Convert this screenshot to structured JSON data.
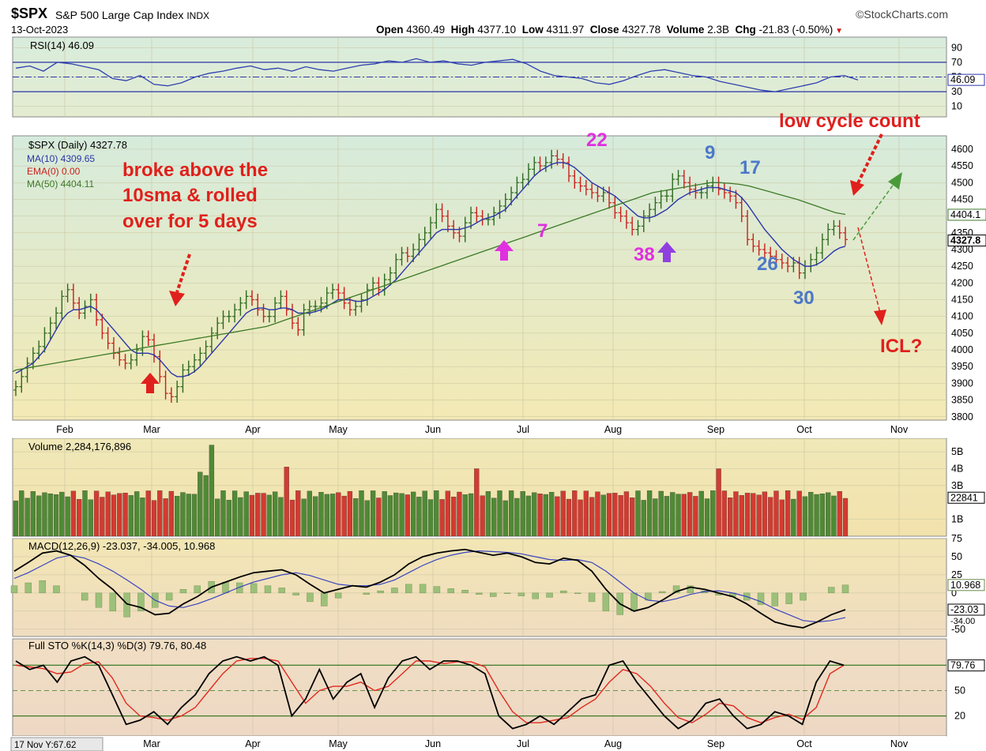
{
  "header": {
    "ticker": "$SPX",
    "name": "S&P 500 Large Cap Index",
    "exchange": "INDX",
    "date": "13-Oct-2023",
    "brand": "©StockCharts.com",
    "open_label": "Open",
    "open": "4360.49",
    "high_label": "High",
    "high": "4377.10",
    "low_label": "Low",
    "low": "4311.97",
    "close_label": "Close",
    "close": "4327.78",
    "volume_label": "Volume",
    "volume": "2.3B",
    "chg_label": "Chg",
    "chg": "-21.83 (-0.50%)"
  },
  "colors": {
    "bg_top": "#dcecd8",
    "bg_bottom": "#f2e6b0",
    "up": "#2d6a1f",
    "down": "#c8201c",
    "ma10": "#2a35a8",
    "ma50": "#3d7a28",
    "annot_red": "#e0201c",
    "annot_magenta": "#e030e0",
    "annot_blue": "#4c78c8"
  },
  "chart_data": [
    {
      "type": "line",
      "panel": "RSI",
      "title": "RSI(14) 46.09",
      "yticks": [
        "90",
        "70",
        "50",
        "30",
        "10"
      ],
      "ylim": [
        0,
        100
      ],
      "last_label": "46.09",
      "series": [
        {
          "name": "RSI(14)",
          "values": [
            62,
            65,
            58,
            70,
            68,
            64,
            60,
            48,
            45,
            52,
            40,
            38,
            42,
            50,
            55,
            58,
            62,
            65,
            60,
            62,
            58,
            64,
            60,
            58,
            62,
            66,
            68,
            72,
            70,
            75,
            70,
            72,
            68,
            66,
            70,
            72,
            74,
            68,
            58,
            52,
            50,
            48,
            42,
            40,
            45,
            52,
            58,
            60,
            56,
            52,
            50,
            44,
            40,
            36,
            32,
            30,
            34,
            38,
            42,
            50,
            52,
            46
          ]
        }
      ]
    },
    {
      "type": "bar",
      "panel": "price",
      "title": "$SPX (Daily) 4327.78",
      "legend": [
        "MA(10) 4309.65",
        "EMA(0) 0.00",
        "MA(50) 4404.11"
      ],
      "yticks": [
        "4600",
        "4550",
        "4500",
        "4450",
        "4400",
        "4350",
        "4300",
        "4250",
        "4200",
        "4150",
        "4100",
        "4050",
        "4000",
        "3950",
        "3900",
        "3850",
        "3800"
      ],
      "ylim": [
        3790,
        4640
      ],
      "last_labels": [
        "4404.1",
        "4327.8"
      ],
      "xticks": [
        "Feb",
        "Mar",
        "Apr",
        "May",
        "Jun",
        "Jul",
        "Aug",
        "Sep",
        "Oct",
        "Nov"
      ],
      "closes": [
        3890,
        3920,
        3960,
        3990,
        4010,
        4050,
        4080,
        4110,
        4160,
        4180,
        4140,
        4110,
        4130,
        4150,
        4090,
        4050,
        4020,
        3990,
        3970,
        3960,
        3970,
        4000,
        4040,
        4030,
        3980,
        3920,
        3870,
        3860,
        3890,
        3940,
        3950,
        3970,
        3990,
        4010,
        4050,
        4080,
        4100,
        4100,
        4120,
        4140,
        4160,
        4150,
        4120,
        4100,
        4100,
        4140,
        4160,
        4120,
        4080,
        4060,
        4120,
        4130,
        4130,
        4140,
        4170,
        4180,
        4170,
        4140,
        4120,
        4130,
        4150,
        4180,
        4200,
        4180,
        4210,
        4230,
        4270,
        4290,
        4280,
        4300,
        4330,
        4350,
        4380,
        4420,
        4400,
        4370,
        4350,
        4340,
        4380,
        4410,
        4400,
        4390,
        4390,
        4410,
        4430,
        4450,
        4470,
        4500,
        4510,
        4540,
        4560,
        4550,
        4560,
        4580,
        4570,
        4560,
        4520,
        4500,
        4490,
        4480,
        4470,
        4460,
        4470,
        4440,
        4410,
        4400,
        4380,
        4360,
        4370,
        4400,
        4420,
        4440,
        4460,
        4460,
        4510,
        4520,
        4500,
        4480,
        4470,
        4470,
        4490,
        4500,
        4480,
        4470,
        4460,
        4440,
        4400,
        4330,
        4310,
        4300,
        4290,
        4280,
        4270,
        4260,
        4250,
        4260,
        4230,
        4250,
        4270,
        4290,
        4330,
        4360,
        4370,
        4350,
        4330
      ],
      "ma10": [
        3930,
        3940,
        3950,
        3960,
        3980,
        4000,
        4030,
        4060,
        4090,
        4110,
        4120,
        4120,
        4125,
        4130,
        4120,
        4100,
        4080,
        4060,
        4040,
        4020,
        4000,
        3990,
        3990,
        3990,
        3985,
        3970,
        3950,
        3930,
        3920,
        3920,
        3925,
        3935,
        3950,
        3970,
        3990,
        4010,
        4030,
        4050,
        4070,
        4090,
        4110,
        4120,
        4125,
        4125,
        4120,
        4120,
        4125,
        4125,
        4120,
        4110,
        4110,
        4110,
        4115,
        4120,
        4130,
        4140,
        4150,
        4150,
        4150,
        4145,
        4145,
        4150,
        4160,
        4170,
        4180,
        4195,
        4210,
        4230,
        4250,
        4270,
        4290,
        4310,
        4330,
        4350,
        4360,
        4360,
        4360,
        4360,
        4365,
        4370,
        4380,
        4390,
        4395,
        4400,
        4410,
        4420,
        4440,
        4460,
        4480,
        4500,
        4520,
        4535,
        4545,
        4555,
        4560,
        4560,
        4555,
        4545,
        4530,
        4515,
        4500,
        4490,
        4480,
        4470,
        4460,
        4445,
        4430,
        4415,
        4400,
        4395,
        4395,
        4400,
        4410,
        4420,
        4435,
        4450,
        4460,
        4470,
        4475,
        4480,
        4485,
        4485,
        4485,
        4480,
        4475,
        4470,
        4455,
        4435,
        4410,
        4385,
        4360,
        4340,
        4320,
        4300,
        4285,
        4270,
        4260,
        4250,
        4250,
        4255,
        4265,
        4280,
        4295,
        4305,
        4310
      ],
      "ma50": [
        3940,
        3945,
        3950,
        3955,
        3960,
        3965,
        3970,
        3975,
        3980,
        3985,
        3990,
        3995,
        4000,
        4005,
        4010,
        4015,
        4020,
        4025,
        4030,
        4035,
        4040,
        4045,
        4050,
        4055,
        4060,
        4065,
        4070,
        4080,
        4090,
        4100,
        4110,
        4120,
        4130,
        4140,
        4150,
        4160,
        4170,
        4180,
        4190,
        4200,
        4210,
        4220,
        4230,
        4240,
        4250,
        4260,
        4270,
        4280,
        4290,
        4300,
        4310,
        4320,
        4330,
        4340,
        4350,
        4360,
        4370,
        4380,
        4390,
        4400,
        4410,
        4420,
        4430,
        4440,
        4450,
        4460,
        4470,
        4475,
        4480,
        4485,
        4490,
        4495,
        4500,
        4500,
        4498,
        4495,
        4490,
        4482,
        4474,
        4466,
        4458,
        4450,
        4440,
        4430,
        4420,
        4410,
        4405
      ]
    },
    {
      "type": "bar",
      "panel": "volume",
      "title": "Volume 2,284,176,896",
      "yticks": [
        "5B",
        "4B",
        "3B",
        "1B"
      ],
      "last_label": "22841"
    },
    {
      "type": "line",
      "panel": "MACD",
      "title": "MACD(12,26,9) -23.037, -34.005, 10.968",
      "yticks": [
        "75",
        "50",
        "25",
        "0",
        "-25",
        "-50"
      ],
      "ylim": [
        -60,
        75
      ],
      "last_labels": [
        "10.968",
        "-23.03",
        "-34.00"
      ],
      "series": [
        {
          "name": "MACD",
          "values": [
            30,
            42,
            55,
            58,
            52,
            38,
            20,
            5,
            -15,
            -20,
            -30,
            -28,
            -15,
            -5,
            8,
            15,
            22,
            28,
            30,
            32,
            25,
            12,
            0,
            5,
            10,
            8,
            15,
            25,
            40,
            50,
            55,
            58,
            60,
            56,
            52,
            55,
            50,
            42,
            40,
            48,
            45,
            30,
            5,
            -15,
            -25,
            -20,
            -10,
            2,
            8,
            5,
            0,
            -5,
            -15,
            -28,
            -40,
            -45,
            -48,
            -40,
            -30,
            -23
          ]
        },
        {
          "name": "Signal",
          "values": [
            20,
            28,
            38,
            48,
            52,
            48,
            40,
            30,
            18,
            5,
            -10,
            -18,
            -20,
            -15,
            -8,
            0,
            8,
            15,
            20,
            25,
            28,
            24,
            18,
            12,
            10,
            10,
            12,
            18,
            28,
            38,
            46,
            52,
            56,
            58,
            57,
            56,
            54,
            50,
            46,
            45,
            46,
            42,
            30,
            15,
            0,
            -10,
            -12,
            -8,
            -2,
            2,
            3,
            0,
            -5,
            -12,
            -22,
            -30,
            -38,
            -40,
            -38,
            -34
          ]
        }
      ]
    },
    {
      "type": "line",
      "panel": "STO",
      "title": "Full STO %K(14,3) %D(3) 79.76, 80.48",
      "yticks": [
        "50",
        "20"
      ],
      "ylim": [
        0,
        100
      ],
      "last_label": "79.76",
      "series": [
        {
          "name": "%K",
          "values": [
            85,
            75,
            80,
            60,
            85,
            90,
            80,
            45,
            10,
            15,
            25,
            10,
            30,
            45,
            70,
            85,
            90,
            85,
            90,
            80,
            20,
            40,
            75,
            40,
            60,
            70,
            30,
            65,
            85,
            90,
            75,
            85,
            85,
            80,
            70,
            20,
            5,
            10,
            20,
            10,
            25,
            40,
            45,
            80,
            85,
            60,
            40,
            20,
            5,
            15,
            35,
            40,
            20,
            5,
            10,
            25,
            20,
            10,
            60,
            85,
            80
          ]
        },
        {
          "name": "%D",
          "values": [
            80,
            78,
            76,
            70,
            72,
            82,
            84,
            65,
            35,
            20,
            18,
            15,
            20,
            30,
            50,
            70,
            85,
            88,
            88,
            85,
            60,
            35,
            50,
            55,
            55,
            60,
            50,
            55,
            70,
            85,
            85,
            82,
            84,
            84,
            78,
            50,
            25,
            12,
            12,
            15,
            18,
            30,
            40,
            60,
            75,
            70,
            55,
            35,
            18,
            12,
            22,
            35,
            32,
            18,
            12,
            18,
            22,
            16,
            30,
            70,
            80
          ]
        }
      ]
    },
    {
      "type": "scatter",
      "panel": "annotations",
      "annotations": [
        "broke above the",
        "10sma & rolled",
        "over for 5 days",
        "low cycle count",
        "ICL?",
        "22",
        "7",
        "38",
        "9",
        "17",
        "26",
        "30"
      ]
    }
  ],
  "footer": {
    "cursor_readout": "17 Nov Y:67.62"
  }
}
